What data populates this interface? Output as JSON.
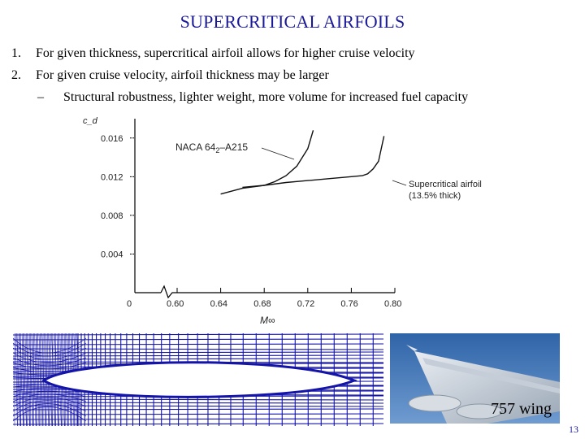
{
  "slide": {
    "title": "SUPERCRITICAL AIRFOILS",
    "page_number": "13"
  },
  "bullets": [
    {
      "num": "1.",
      "text": "For given thickness, supercritical airfoil allows for higher cruise velocity"
    },
    {
      "num": "2.",
      "text": "For given cruise velocity, airfoil thickness may be larger"
    }
  ],
  "sub_bullet": {
    "dash": "–",
    "text": "Structural robustness, lighter weight, more volume for increased fuel capacity"
  },
  "colors": {
    "title": "#1a1a99",
    "mesh": "#1414a8",
    "sky": "#2f64a8"
  },
  "chart_data": {
    "type": "line",
    "ylabel": "c_d",
    "xlabel": "M∞",
    "x_ticks": [
      "0",
      "0.60",
      "0.64",
      "0.68",
      "0.72",
      "0.76",
      "0.80"
    ],
    "y_ticks": [
      "0.004",
      "0.008",
      "0.012",
      "0.016"
    ],
    "xlim": [
      0.56,
      0.8
    ],
    "ylim": [
      0,
      0.018
    ],
    "series": [
      {
        "name": "NACA 64₂-A215",
        "x": [
          0.66,
          0.67,
          0.68,
          0.69,
          0.7,
          0.71,
          0.72,
          0.725
        ],
        "y": [
          0.0109,
          0.011,
          0.0111,
          0.0115,
          0.0121,
          0.0131,
          0.0149,
          0.0168
        ]
      },
      {
        "name": "Supercritical airfoil (13.5% thick)",
        "x": [
          0.64,
          0.66,
          0.68,
          0.7,
          0.72,
          0.74,
          0.76,
          0.77,
          0.775,
          0.78,
          0.785,
          0.79
        ],
        "y": [
          0.0102,
          0.0108,
          0.0111,
          0.0114,
          0.0116,
          0.0118,
          0.012,
          0.0121,
          0.0123,
          0.0128,
          0.0136,
          0.0162
        ]
      }
    ],
    "annotations": {
      "naca_label": "NACA 64₂-A215",
      "supercritical_label": "Supercritical airfoil",
      "supercritical_sub": "(13.5% thick)"
    }
  },
  "photo": {
    "caption": "757 wing"
  },
  "icons": {
    "axis_break": "zigzag-icon"
  }
}
